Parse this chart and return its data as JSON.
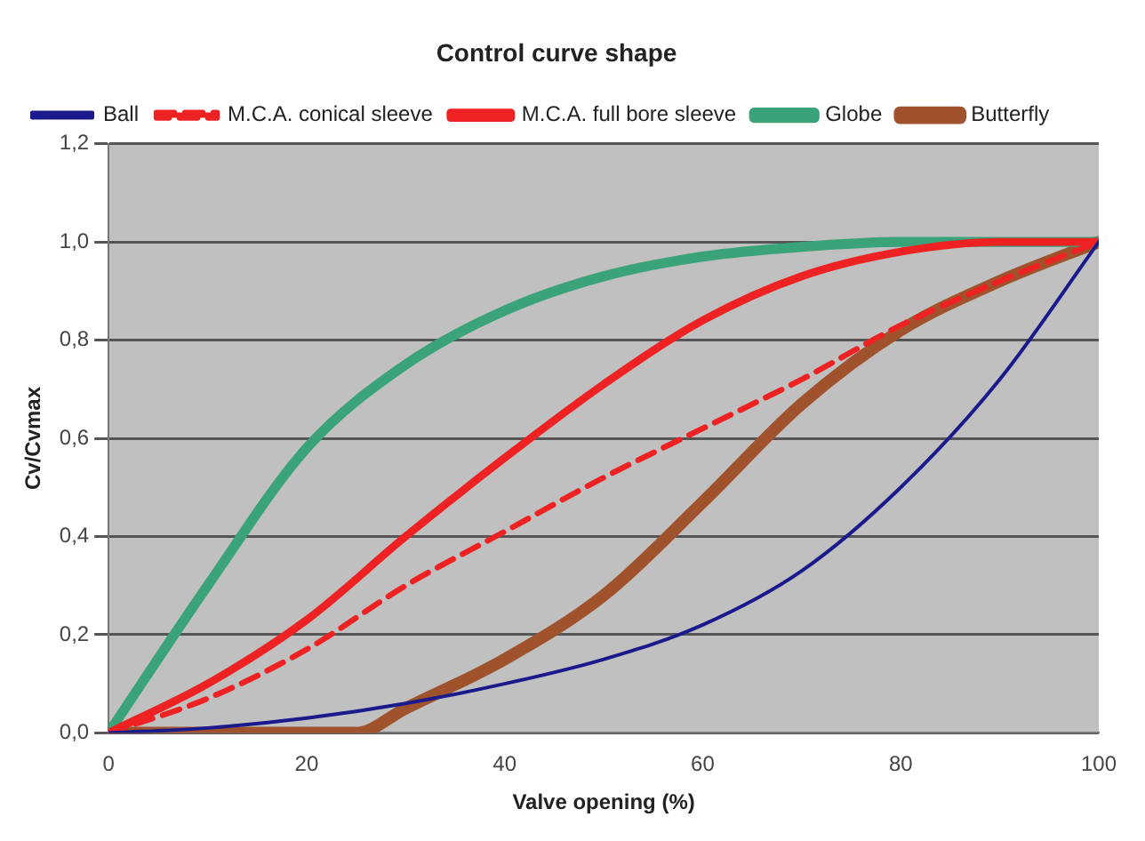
{
  "chart_data": {
    "type": "line",
    "title": "Control curve shape",
    "xlabel": "Valve opening (%)",
    "ylabel": "Cv/Cvmax",
    "xlim": [
      0,
      100
    ],
    "xticks": [
      0,
      20,
      40,
      60,
      80,
      100
    ],
    "ylim": [
      0,
      1.2
    ],
    "yticks": [
      {
        "value": 0,
        "label": "0,0"
      },
      {
        "value": 0.2,
        "label": "0,2"
      },
      {
        "value": 0.4,
        "label": "0,4"
      },
      {
        "value": 0.6,
        "label": "0,6"
      },
      {
        "value": 0.8,
        "label": "0,8"
      },
      {
        "value": 1,
        "label": "1,0"
      },
      {
        "value": 1.2,
        "label": "1,2"
      }
    ],
    "grid": "y",
    "legend": "top left",
    "marker": "none",
    "series": [
      {
        "name": "Ball",
        "color": "#1a1a8c",
        "x": [
          0,
          10,
          20,
          30,
          40,
          50,
          60,
          70,
          80,
          90,
          100
        ],
        "values": [
          0,
          0.01,
          0.03,
          0.06,
          0.1,
          0.15,
          0.22,
          0.33,
          0.5,
          0.72,
          1
        ]
      },
      {
        "name": "M.C.A. conical sleeve",
        "color": "#ee2222",
        "line_style": "dashed",
        "x": [
          0,
          10,
          20,
          30,
          40,
          50,
          60,
          70,
          80,
          90,
          100
        ],
        "values": [
          0,
          0.07,
          0.17,
          0.3,
          0.41,
          0.52,
          0.62,
          0.72,
          0.83,
          0.92,
          1
        ]
      },
      {
        "name": "M.C.A. full bore sleeve",
        "color": "#ee2222",
        "x": [
          0,
          10,
          20,
          30,
          40,
          50,
          60,
          70,
          80,
          90,
          100
        ],
        "values": [
          0,
          0.1,
          0.23,
          0.4,
          0.56,
          0.71,
          0.84,
          0.93,
          0.98,
          1,
          1
        ]
      },
      {
        "name": "Globe",
        "color": "#3aa37a",
        "x": [
          0,
          10,
          20,
          30,
          40,
          50,
          60,
          70,
          80,
          90,
          100
        ],
        "values": [
          0,
          0.3,
          0.58,
          0.75,
          0.86,
          0.93,
          0.97,
          0.99,
          1,
          1,
          1
        ]
      },
      {
        "name": "Butterfly",
        "color": "#a0522d",
        "x": [
          0,
          25,
          30,
          40,
          50,
          60,
          70,
          80,
          90,
          100
        ],
        "values": [
          0,
          0,
          0.05,
          0.15,
          0.28,
          0.47,
          0.67,
          0.82,
          0.92,
          1
        ]
      }
    ]
  }
}
